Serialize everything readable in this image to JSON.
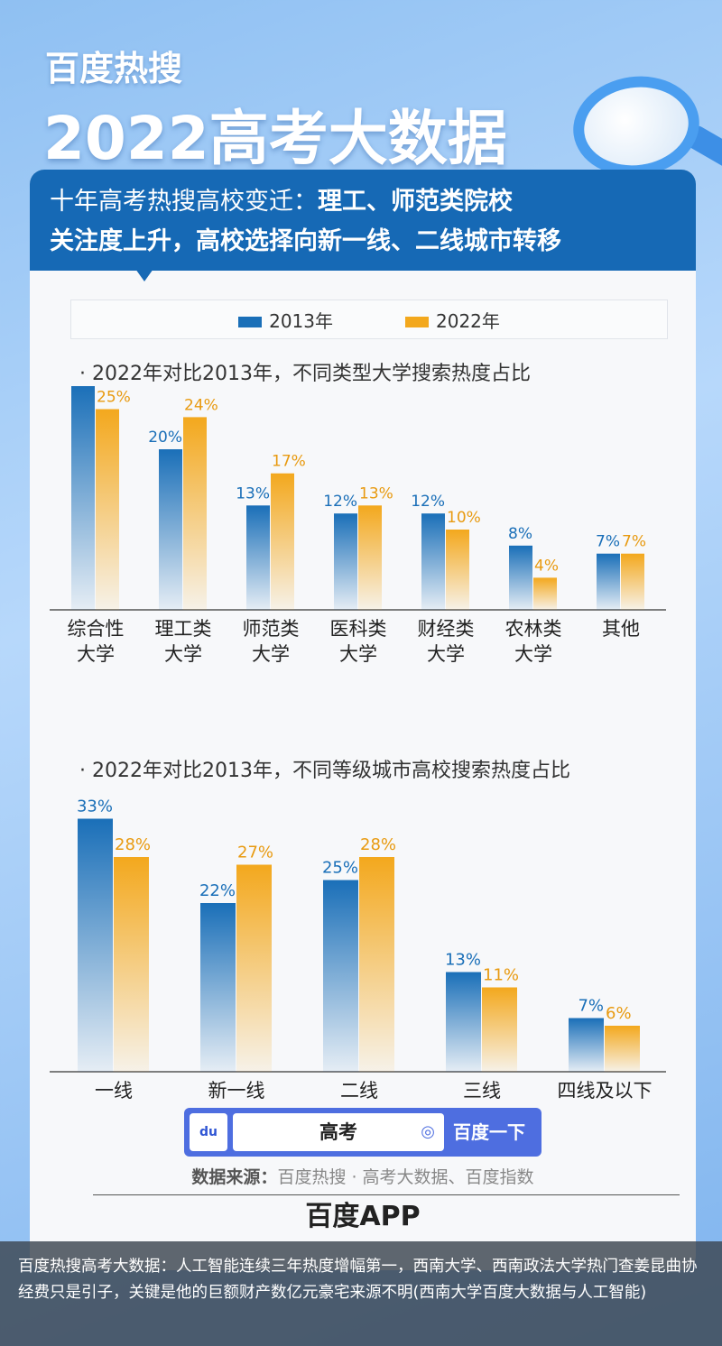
{
  "header": {
    "brand": "百度热搜",
    "title": "2022高考大数据"
  },
  "headline": {
    "line1_normal": "十年高考热搜高校变迁：",
    "line1_bold": "理工、师范类院校",
    "line2": "关注度上升，高校选择向新一线、二线城市转移"
  },
  "colors": {
    "s2013": "#1a6fb8",
    "s2022": "#f3a81d",
    "band": "#1669b5"
  },
  "legend": [
    "2013年",
    "2022年"
  ],
  "chart_data": [
    {
      "type": "bar",
      "title": "· 2022年对比2013年，不同类型大学搜索热度占比",
      "categories": [
        "综合性\n大学",
        "理工类\n大学",
        "师范类\n大学",
        "医科类\n大学",
        "财经类\n大学",
        "农林类\n大学",
        "其他"
      ],
      "series": [
        {
          "name": "2013年",
          "values": [
            28,
            20,
            13,
            12,
            12,
            8,
            7
          ]
        },
        {
          "name": "2022年",
          "values": [
            25,
            24,
            17,
            13,
            10,
            4,
            7
          ]
        }
      ],
      "unit": "%",
      "legend": "top"
    },
    {
      "type": "bar",
      "title": "· 2022年对比2013年，不同等级城市高校搜索热度占比",
      "categories": [
        "一线",
        "新一线",
        "二线",
        "三线",
        "四线及以下"
      ],
      "series": [
        {
          "name": "2013年",
          "values": [
            33,
            22,
            25,
            13,
            7
          ]
        },
        {
          "name": "2022年",
          "values": [
            28,
            27,
            28,
            11,
            6
          ]
        }
      ],
      "unit": "%",
      "legend": "top"
    }
  ],
  "search": {
    "logo": "du",
    "query": "高考",
    "button": "百度一下",
    "icon": "camera-icon"
  },
  "source": {
    "label": "数据来源：",
    "text": "百度热搜 · 高考大数据、百度指数"
  },
  "app": "百度APP",
  "caption": "百度热搜高考大数据：人工智能连续三年热度增幅第一，西南大学、西南政法大学热门查姜昆曲协经费只是引子，关键是他的巨额财产数亿元豪宅来源不明(西南大学百度大数据与人工智能)"
}
